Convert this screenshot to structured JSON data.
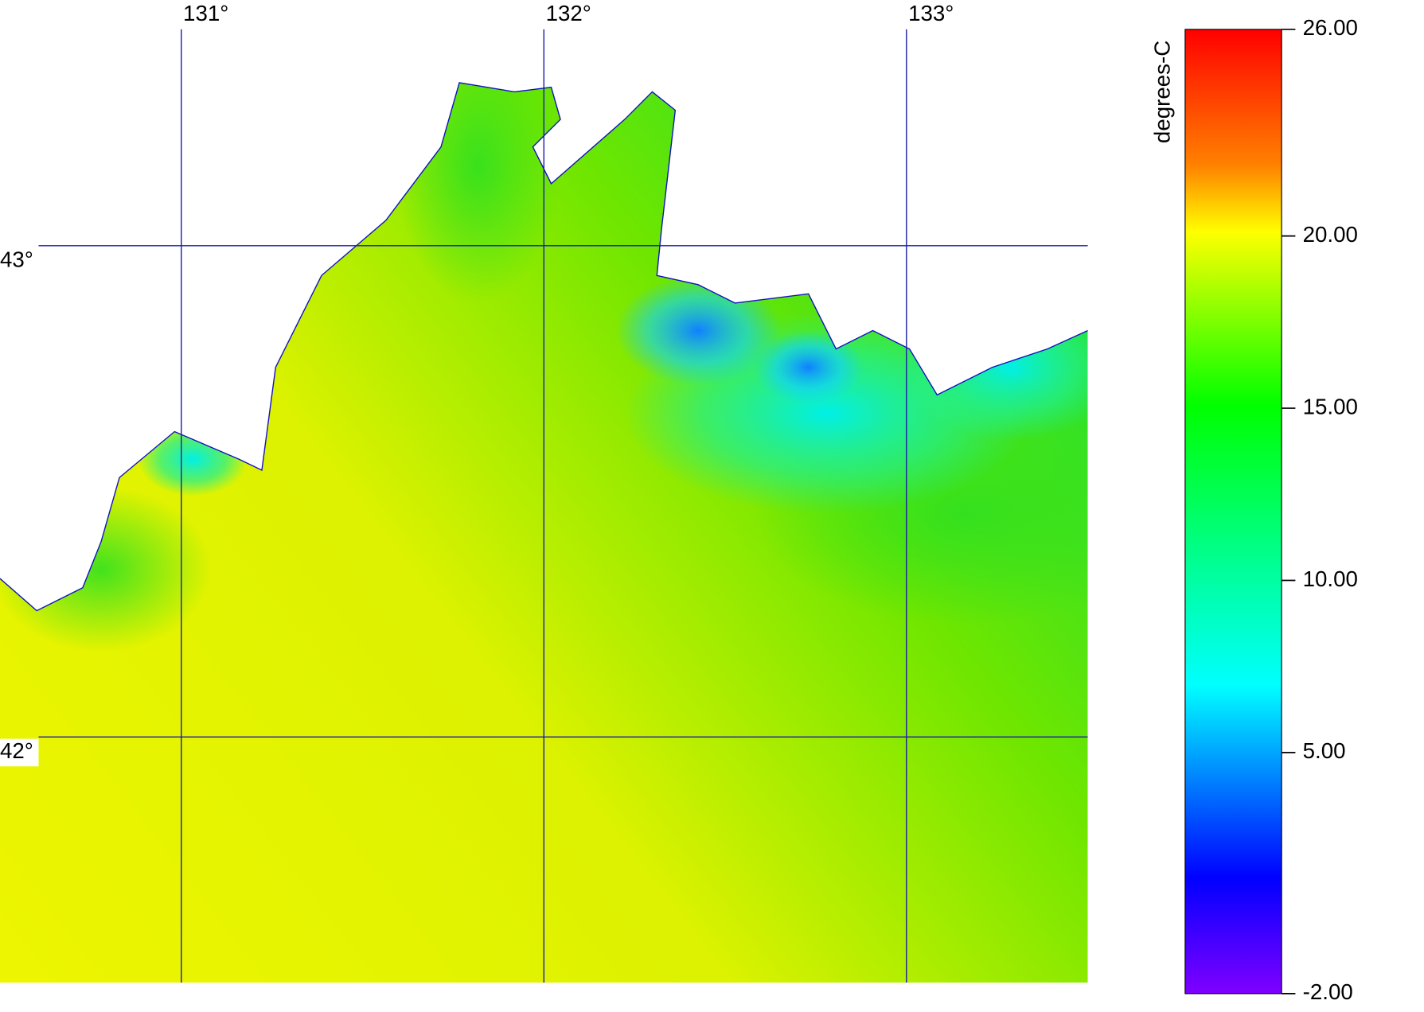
{
  "map": {
    "lon_range": [
      130.5,
      133.5
    ],
    "lat_range": [
      41.5,
      43.5
    ],
    "meridians": [
      {
        "value": 131,
        "label": "131°"
      },
      {
        "value": 132,
        "label": "132°"
      },
      {
        "value": 133,
        "label": "133°"
      }
    ],
    "parallels": [
      {
        "value": 43,
        "label": "43°"
      },
      {
        "value": 42,
        "label": "42°"
      }
    ]
  },
  "colorbar": {
    "title": "degrees-C",
    "range": [
      -2,
      26
    ],
    "ticks": [
      {
        "value": 26,
        "label": "26.00"
      },
      {
        "value": 20,
        "label": "20.00"
      },
      {
        "value": 15,
        "label": "15.00"
      },
      {
        "value": 10,
        "label": "10.00"
      },
      {
        "value": 5,
        "label": "5.00"
      },
      {
        "value": -2,
        "label": "-2.00"
      }
    ]
  }
}
